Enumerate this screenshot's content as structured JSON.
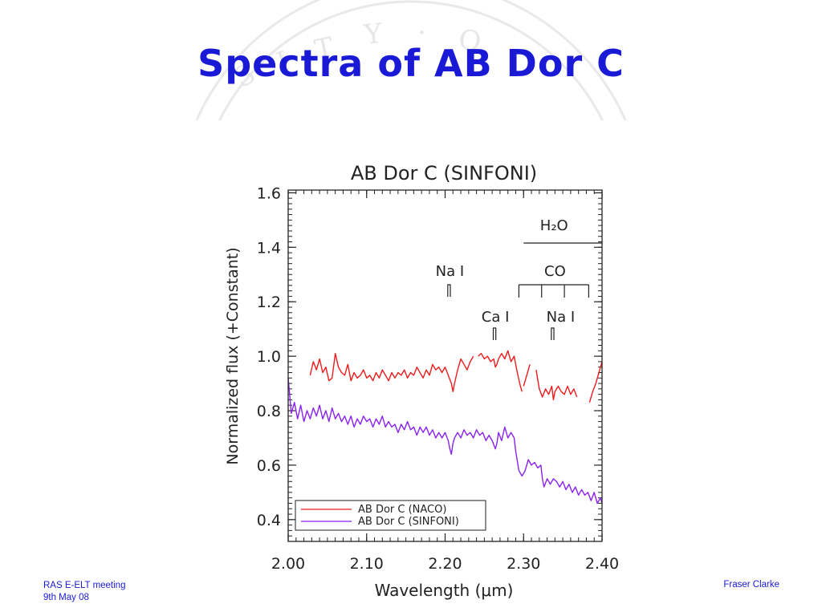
{
  "slide": {
    "title": "Spectra of AB Dor C",
    "footer_left_line1": "RAS E-ELT meeting",
    "footer_left_line2": "9th May 08",
    "footer_right": "Fraser Clarke",
    "accent_color": "#1a1ad6"
  },
  "chart_data": {
    "type": "line",
    "title": "AB Dor C (SINFONI)",
    "xlabel": "Wavelength (μm)",
    "ylabel": "Normalized flux (+Constant)",
    "xlim": [
      2.0,
      2.4
    ],
    "ylim": [
      0.32,
      1.61
    ],
    "xticks": [
      2.0,
      2.1,
      2.2,
      2.3,
      2.4
    ],
    "xtick_labels": [
      "2.00",
      "2.10",
      "2.20",
      "2.30",
      "2.40"
    ],
    "yticks": [
      0.4,
      0.6,
      0.8,
      1.0,
      1.2,
      1.4,
      1.6
    ],
    "ytick_labels": [
      "0.4",
      "0.6",
      "0.8",
      "1.0",
      "1.2",
      "1.4",
      "1.6"
    ],
    "grid": false,
    "legend_position": "bottom-left",
    "series": [
      {
        "name": "AB Dor C (NACO)",
        "color": "#ee1c1c",
        "segments": [
          [
            [
              2.028,
              0.93
            ],
            [
              2.032,
              0.98
            ],
            [
              2.036,
              0.95
            ],
            [
              2.04,
              0.99
            ],
            [
              2.044,
              0.94
            ],
            [
              2.048,
              0.96
            ],
            [
              2.052,
              0.91
            ],
            [
              2.056,
              0.92
            ],
            [
              2.06,
              1.01
            ],
            [
              2.064,
              0.96
            ],
            [
              2.068,
              0.94
            ],
            [
              2.072,
              0.93
            ],
            [
              2.076,
              0.97
            ],
            [
              2.08,
              0.91
            ],
            [
              2.084,
              0.94
            ],
            [
              2.088,
              0.92
            ],
            [
              2.092,
              0.93
            ],
            [
              2.096,
              0.95
            ],
            [
              2.1,
              0.92
            ],
            [
              2.104,
              0.93
            ],
            [
              2.108,
              0.91
            ],
            [
              2.112,
              0.94
            ],
            [
              2.116,
              0.92
            ],
            [
              2.12,
              0.95
            ],
            [
              2.124,
              0.93
            ],
            [
              2.128,
              0.91
            ],
            [
              2.132,
              0.94
            ],
            [
              2.136,
              0.92
            ],
            [
              2.14,
              0.94
            ],
            [
              2.144,
              0.93
            ],
            [
              2.148,
              0.95
            ],
            [
              2.152,
              0.92
            ],
            [
              2.156,
              0.94
            ],
            [
              2.16,
              0.93
            ],
            [
              2.164,
              0.96
            ],
            [
              2.168,
              0.94
            ],
            [
              2.172,
              0.92
            ],
            [
              2.176,
              0.95
            ],
            [
              2.18,
              0.93
            ],
            [
              2.184,
              0.97
            ],
            [
              2.188,
              0.95
            ],
            [
              2.192,
              0.96
            ],
            [
              2.196,
              0.94
            ],
            [
              2.2,
              0.96
            ],
            [
              2.204,
              0.93
            ],
            [
              2.208,
              0.9
            ],
            [
              2.21,
              0.87
            ],
            [
              2.212,
              0.9
            ],
            [
              2.216,
              0.95
            ],
            [
              2.22,
              0.99
            ],
            [
              2.224,
              0.97
            ],
            [
              2.228,
              0.95
            ],
            [
              2.232,
              0.98
            ],
            [
              2.236,
              1.0
            ]
          ],
          [
            [
              2.242,
              1.0
            ],
            [
              2.246,
              1.01
            ],
            [
              2.25,
              0.99
            ],
            [
              2.254,
              1.0
            ],
            [
              2.258,
              0.98
            ],
            [
              2.262,
              0.99
            ],
            [
              2.264,
              0.96
            ],
            [
              2.266,
              0.97
            ],
            [
              2.268,
              0.99
            ],
            [
              2.272,
              1.01
            ],
            [
              2.276,
              0.99
            ],
            [
              2.28,
              1.02
            ],
            [
              2.284,
              0.98
            ],
            [
              2.288,
              1.0
            ],
            [
              2.292,
              0.94
            ],
            [
              2.296,
              0.89
            ],
            [
              2.298,
              0.87
            ]
          ],
          [
            [
              2.3,
              0.89
            ],
            [
              2.304,
              0.93
            ],
            [
              2.308,
              0.97
            ]
          ],
          [
            [
              2.316,
              0.95
            ],
            [
              2.32,
              0.88
            ],
            [
              2.324,
              0.85
            ],
            [
              2.328,
              0.88
            ],
            [
              2.332,
              0.86
            ],
            [
              2.336,
              0.89
            ],
            [
              2.338,
              0.84
            ],
            [
              2.34,
              0.87
            ],
            [
              2.344,
              0.89
            ],
            [
              2.348,
              0.87
            ],
            [
              2.352,
              0.86
            ],
            [
              2.356,
              0.89
            ],
            [
              2.36,
              0.86
            ],
            [
              2.364,
              0.88
            ],
            [
              2.368,
              0.85
            ]
          ],
          [
            [
              2.384,
              0.83
            ],
            [
              2.388,
              0.87
            ],
            [
              2.392,
              0.9
            ],
            [
              2.396,
              0.94
            ],
            [
              2.4,
              0.98
            ]
          ]
        ]
      },
      {
        "name": "AB Dor C (SINFONI)",
        "color": "#8a22ee",
        "segments": [
          [
            [
              2.0,
              0.92
            ],
            [
              2.004,
              0.79
            ],
            [
              2.008,
              0.83
            ],
            [
              2.012,
              0.77
            ],
            [
              2.016,
              0.82
            ],
            [
              2.02,
              0.76
            ],
            [
              2.024,
              0.8
            ],
            [
              2.028,
              0.77
            ],
            [
              2.032,
              0.81
            ],
            [
              2.036,
              0.78
            ],
            [
              2.04,
              0.82
            ],
            [
              2.044,
              0.77
            ],
            [
              2.048,
              0.8
            ],
            [
              2.052,
              0.76
            ],
            [
              2.056,
              0.81
            ],
            [
              2.06,
              0.77
            ],
            [
              2.064,
              0.79
            ],
            [
              2.068,
              0.76
            ],
            [
              2.072,
              0.78
            ],
            [
              2.076,
              0.75
            ],
            [
              2.08,
              0.78
            ],
            [
              2.084,
              0.74
            ],
            [
              2.088,
              0.77
            ],
            [
              2.092,
              0.75
            ],
            [
              2.096,
              0.78
            ],
            [
              2.1,
              0.76
            ],
            [
              2.104,
              0.77
            ],
            [
              2.108,
              0.74
            ],
            [
              2.112,
              0.77
            ],
            [
              2.116,
              0.75
            ],
            [
              2.12,
              0.78
            ],
            [
              2.124,
              0.74
            ],
            [
              2.128,
              0.76
            ],
            [
              2.132,
              0.74
            ],
            [
              2.136,
              0.75
            ],
            [
              2.14,
              0.72
            ],
            [
              2.144,
              0.75
            ],
            [
              2.148,
              0.73
            ],
            [
              2.152,
              0.76
            ],
            [
              2.156,
              0.73
            ],
            [
              2.16,
              0.74
            ],
            [
              2.164,
              0.71
            ],
            [
              2.168,
              0.74
            ],
            [
              2.172,
              0.72
            ],
            [
              2.176,
              0.74
            ],
            [
              2.18,
              0.71
            ],
            [
              2.184,
              0.73
            ],
            [
              2.188,
              0.7
            ],
            [
              2.192,
              0.72
            ],
            [
              2.196,
              0.7
            ],
            [
              2.2,
              0.72
            ],
            [
              2.204,
              0.69
            ],
            [
              2.206,
              0.66
            ],
            [
              2.208,
              0.64
            ],
            [
              2.21,
              0.68
            ],
            [
              2.212,
              0.7
            ],
            [
              2.216,
              0.72
            ],
            [
              2.22,
              0.7
            ],
            [
              2.224,
              0.73
            ],
            [
              2.228,
              0.71
            ],
            [
              2.232,
              0.72
            ],
            [
              2.236,
              0.7
            ],
            [
              2.24,
              0.73
            ],
            [
              2.244,
              0.71
            ],
            [
              2.248,
              0.72
            ],
            [
              2.252,
              0.69
            ],
            [
              2.256,
              0.71
            ],
            [
              2.26,
              0.69
            ],
            [
              2.264,
              0.66
            ],
            [
              2.266,
              0.68
            ],
            [
              2.268,
              0.72
            ],
            [
              2.272,
              0.69
            ],
            [
              2.276,
              0.74
            ],
            [
              2.28,
              0.7
            ],
            [
              2.284,
              0.72
            ],
            [
              2.288,
              0.7
            ],
            [
              2.29,
              0.65
            ],
            [
              2.294,
              0.58
            ],
            [
              2.298,
              0.56
            ],
            [
              2.302,
              0.58
            ],
            [
              2.306,
              0.62
            ],
            [
              2.31,
              0.6
            ],
            [
              2.314,
              0.61
            ],
            [
              2.318,
              0.59
            ],
            [
              2.322,
              0.6
            ],
            [
              2.324,
              0.55
            ],
            [
              2.326,
              0.52
            ],
            [
              2.33,
              0.55
            ],
            [
              2.334,
              0.53
            ],
            [
              2.338,
              0.55
            ],
            [
              2.342,
              0.54
            ],
            [
              2.346,
              0.52
            ],
            [
              2.35,
              0.54
            ],
            [
              2.354,
              0.51
            ],
            [
              2.358,
              0.53
            ],
            [
              2.362,
              0.5
            ],
            [
              2.366,
              0.52
            ],
            [
              2.37,
              0.49
            ],
            [
              2.374,
              0.51
            ],
            [
              2.378,
              0.49
            ],
            [
              2.382,
              0.5
            ],
            [
              2.386,
              0.47
            ],
            [
              2.39,
              0.5
            ],
            [
              2.394,
              0.46
            ],
            [
              2.398,
              0.48
            ],
            [
              2.4,
              0.46
            ]
          ]
        ]
      }
    ],
    "annotations": {
      "na_i_left": {
        "text": "Na I",
        "x": 2.205
      },
      "ca_i": {
        "text": "Ca I",
        "x": 2.263
      },
      "na_i_right": {
        "text": "Na I",
        "x": 2.337
      },
      "co": {
        "text": "CO",
        "x_start": 2.294,
        "ticks": [
          2.294,
          2.323,
          2.352,
          2.383
        ]
      },
      "h2o": {
        "text": "H₂O",
        "x_start": 2.3,
        "x_end": 2.4
      }
    }
  }
}
